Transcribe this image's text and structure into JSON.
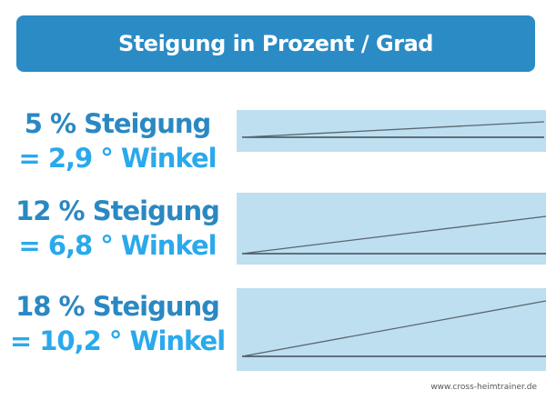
{
  "title": "Steigung in Prozent / Grad",
  "rows": [
    {
      "line1": "5 % Steigung",
      "line2": "= 2,9 ° Winkel",
      "percent": 5,
      "degrees": 2.9
    },
    {
      "line1": "12 % Steigung",
      "line2": "= 6,8 ° Winkel",
      "percent": 12,
      "degrees": 6.8
    },
    {
      "line1": "18 % Steigung",
      "line2": "= 10,2 ° Winkel",
      "percent": 18,
      "degrees": 10.2
    }
  ],
  "footer": "www.cross-heimtrainer.de",
  "colors": {
    "header": "#2b8bc5",
    "line1": "#2a88c2",
    "line2": "#2aa9ec",
    "box": "#bddff0"
  }
}
